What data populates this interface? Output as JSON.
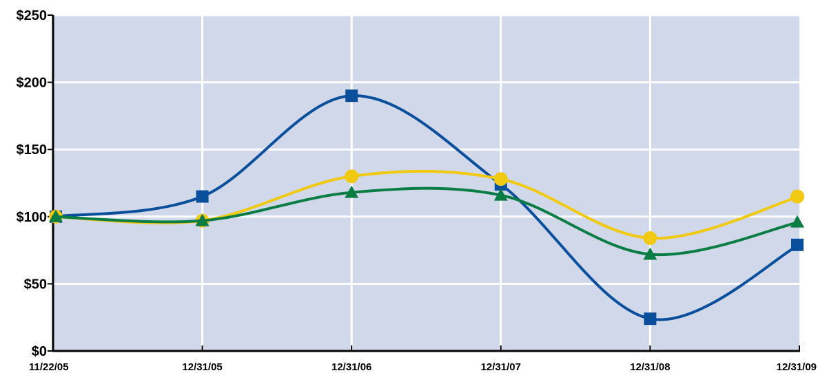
{
  "chart_data": {
    "type": "line",
    "title": "",
    "xlabel": "",
    "ylabel": "",
    "categories": [
      "11/22/05",
      "12/31/05",
      "12/31/06",
      "12/31/07",
      "12/31/08",
      "12/31/09"
    ],
    "ylim": [
      0,
      250
    ],
    "yticks": [
      0,
      50,
      100,
      150,
      200,
      250
    ],
    "ytick_labels": [
      "$0",
      "$50",
      "$100",
      "$150",
      "$200",
      "$250"
    ],
    "grid": true,
    "legend": "none",
    "plot_background": "#d0d8ea",
    "series": [
      {
        "values": [
          100,
          115,
          190,
          124,
          24,
          79
        ],
        "color": "#0a4f9c",
        "marker": "square"
      },
      {
        "values": [
          100,
          97,
          130,
          128,
          84,
          115
        ],
        "color": "#f2c911",
        "marker": "circle"
      },
      {
        "values": [
          100,
          97,
          118,
          116,
          72,
          96
        ],
        "color": "#0a7d45",
        "marker": "triangle"
      }
    ]
  }
}
